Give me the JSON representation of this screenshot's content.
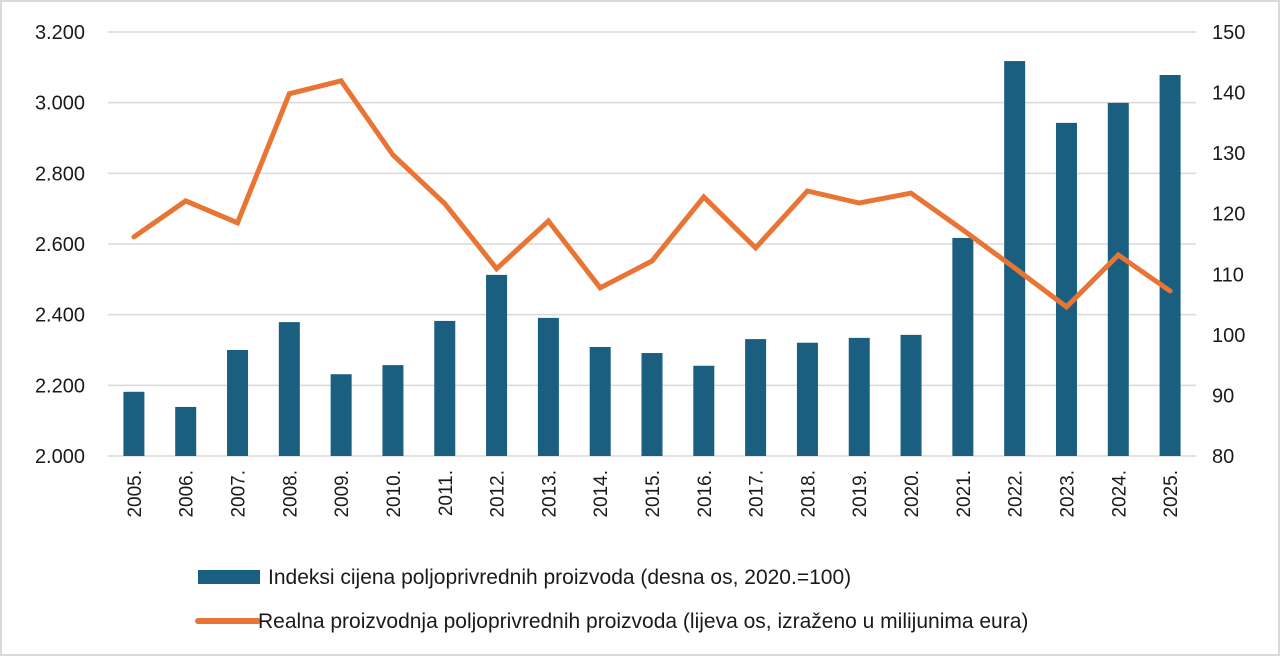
{
  "chart_data": {
    "type": "bar+line",
    "title": "",
    "categories": [
      "2005.",
      "2006.",
      "2007.",
      "2008.",
      "2009.",
      "2010.",
      "2011.",
      "2012.",
      "2013.",
      "2014.",
      "2015.",
      "2016.",
      "2017.",
      "2018.",
      "2019.",
      "2020.",
      "2021.",
      "2022.",
      "2023.",
      "2024.",
      "2025."
    ],
    "series": [
      {
        "name": "Indeksi cijena poljoprivrednih proizvoda (desna os, 2020.=100)",
        "type": "bar",
        "axis": "right",
        "color": "#1a5e80",
        "values": [
          90.6,
          88.1,
          97.5,
          102.1,
          93.5,
          95.0,
          102.3,
          109.9,
          102.8,
          98.0,
          97.0,
          94.9,
          99.3,
          98.7,
          99.5,
          100.0,
          116.0,
          145.2,
          135.0,
          138.3,
          142.9
        ]
      },
      {
        "name": "Realna proizvodnja poljoprivrednih proizvoda (lijeva os, izraženo u milijunima eura)",
        "type": "line",
        "axis": "left",
        "color": "#e87534",
        "values": [
          2620,
          2722,
          2660,
          3025,
          3062,
          2852,
          2714,
          2530,
          2665,
          2476,
          2552,
          2733,
          2589,
          2750,
          2716,
          2744,
          2640,
          2532,
          2422,
          2569,
          2467
        ]
      }
    ],
    "left_axis": {
      "label": "",
      "ylim": [
        2000,
        3200
      ],
      "ticks": [
        2000,
        2200,
        2400,
        2600,
        2800,
        3000,
        3200
      ],
      "tick_labels": [
        "2.000",
        "2.200",
        "2.400",
        "2.600",
        "2.800",
        "3.000",
        "3.200"
      ]
    },
    "right_axis": {
      "label": "",
      "ylim": [
        80,
        150
      ],
      "ticks": [
        80,
        90,
        100,
        110,
        120,
        130,
        140,
        150
      ],
      "tick_labels": [
        "80",
        "90",
        "100",
        "110",
        "120",
        "130",
        "140",
        "150"
      ]
    },
    "xlabel": "",
    "grid": true,
    "legend_position": "bottom"
  },
  "legend": {
    "bar_label": "Indeksi cijena poljoprivrednih proizvoda (desna os, 2020.=100)",
    "line_label": "Realna proizvodnja poljoprivrednih proizvoda (lijeva os, izraženo u milijunima eura)"
  }
}
